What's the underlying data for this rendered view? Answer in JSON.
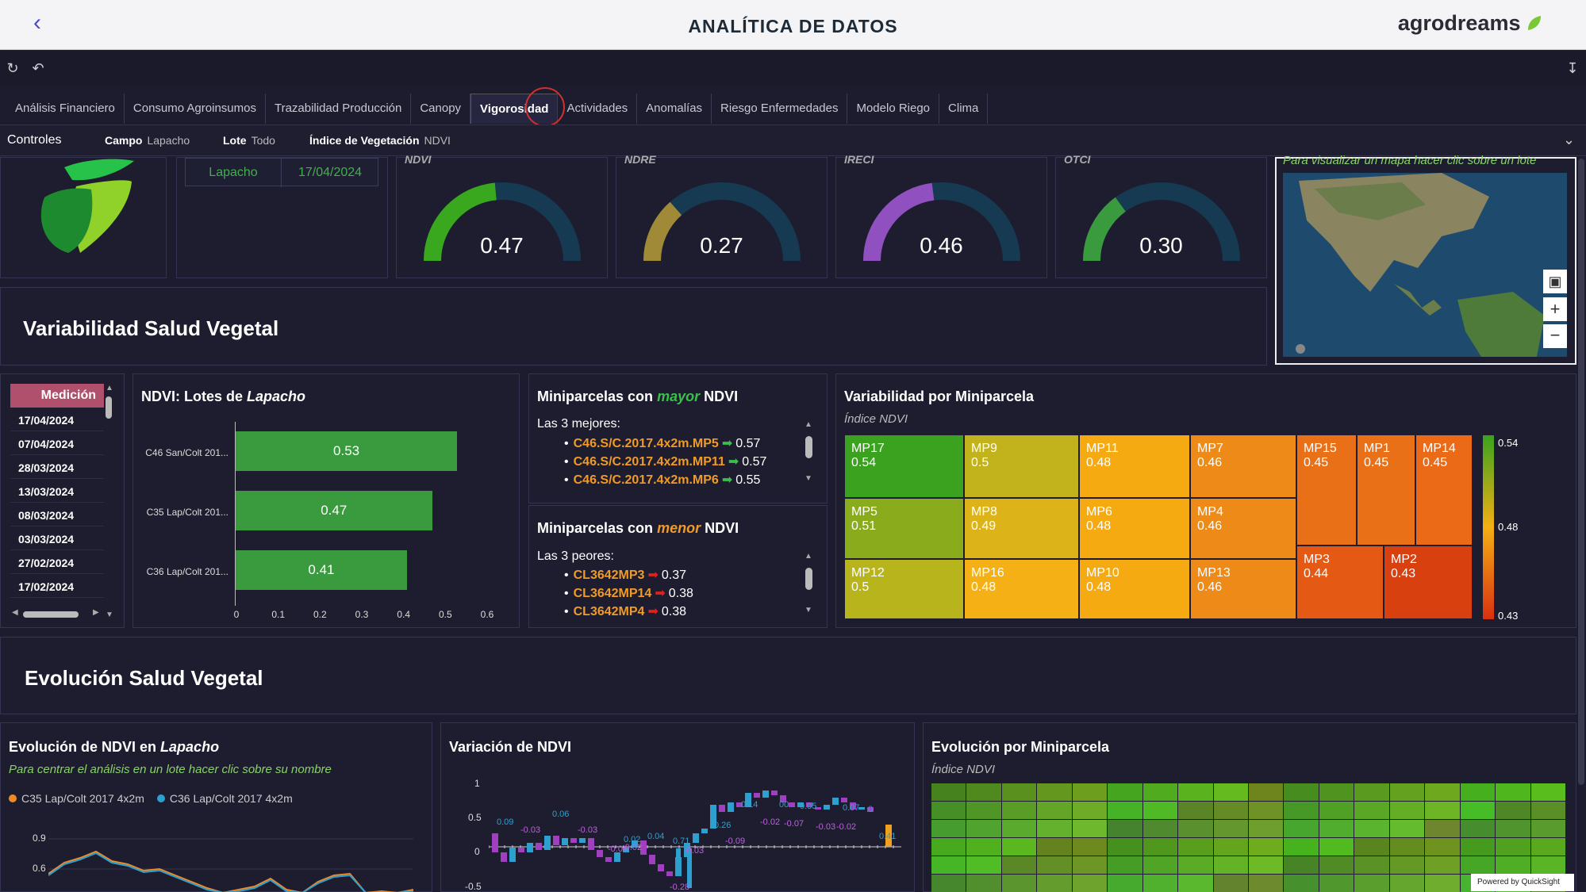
{
  "header": {
    "back_icon": "chevron-left-icon",
    "title": "ANALÍTICA DE DATOS",
    "brand": "agrodreams"
  },
  "tabs": [
    {
      "label": "Análisis Financiero"
    },
    {
      "label": "Consumo Agroinsumos"
    },
    {
      "label": "Trazabilidad Producción"
    },
    {
      "label": "Canopy"
    },
    {
      "label": "Vigorosidad",
      "active": true
    },
    {
      "label": "Actividades"
    },
    {
      "label": "Anomalías"
    },
    {
      "label": "Riesgo Enfermedades"
    },
    {
      "label": "Modelo Riego"
    },
    {
      "label": "Clima"
    }
  ],
  "controls": {
    "title": "Controles",
    "campo_label": "Campo",
    "campo_value": "Lapacho",
    "lote_label": "Lote",
    "lote_value": "Todo",
    "indice_label": "Índice de Vegetación",
    "indice_value": "NDVI"
  },
  "summary": {
    "campo": "Lapacho",
    "fecha": "17/04/2024"
  },
  "kpis": [
    {
      "label": "NDVI",
      "value": "0.47",
      "fraction": 0.47,
      "color": "#3aa81e"
    },
    {
      "label": "NDRE",
      "value": "0.27",
      "fraction": 0.27,
      "color": "#a08a38"
    },
    {
      "label": "IRECI",
      "value": "0.46",
      "fraction": 0.46,
      "color": "#9050c0"
    },
    {
      "label": "OTCI",
      "value": "0.30",
      "fraction": 0.3,
      "color": "#3a9a3e"
    }
  ],
  "map": {
    "hint": "Para visualizar un mapa hacer clic sobre un lote"
  },
  "section1": {
    "title": "Variabilidad Salud Vegetal"
  },
  "dates": {
    "header": "Medición",
    "items": [
      "17/04/2024",
      "07/04/2024",
      "28/03/2024",
      "13/03/2024",
      "08/03/2024",
      "03/03/2024",
      "27/02/2024",
      "17/02/2024"
    ]
  },
  "bar_chart": {
    "title_prefix": "NDVI: Lotes de",
    "title_campo": "Lapacho",
    "chart_data": {
      "type": "bar",
      "categories": [
        "C46 San/Colt 201...",
        "C35 Lap/Colt 201...",
        "C36 Lap/Colt 201..."
      ],
      "values": [
        0.53,
        0.47,
        0.41
      ],
      "value_labels": [
        "0.53",
        "0.47",
        "0.41"
      ],
      "xlim": [
        0,
        0.6
      ],
      "ticks": [
        "0",
        "0.1",
        "0.2",
        "0.3",
        "0.4",
        "0.5",
        "0.6"
      ]
    }
  },
  "best": {
    "title_prefix": "Miniparcelas con",
    "title_word": "mayor",
    "title_suffix": "NDVI",
    "caption": "Las 3 mejores:",
    "items": [
      {
        "name": "C46.S/C.2017.4x2m.MP5",
        "value": "0.57"
      },
      {
        "name": "C46.S/C.2017.4x2m.MP11",
        "value": "0.57"
      },
      {
        "name": "C46.S/C.2017.4x2m.MP6",
        "value": "0.55"
      }
    ]
  },
  "worst": {
    "title_prefix": "Miniparcelas con",
    "title_word": "menor",
    "title_suffix": "NDVI",
    "caption": "Las 3 peores:",
    "items": [
      {
        "name": "CL3642MP3",
        "value": "0.37"
      },
      {
        "name": "CL3642MP14",
        "value": "0.38"
      },
      {
        "name": "CL3642MP4",
        "value": "0.38"
      }
    ]
  },
  "treemap": {
    "title": "Variabilidad por Miniparcela",
    "subtitle": "Índice NDVI",
    "cells": [
      {
        "name": "MP17",
        "value": "0.54",
        "color": "#3aa21e"
      },
      {
        "name": "MP5",
        "value": "0.51",
        "color": "#8aac1c"
      },
      {
        "name": "MP12",
        "value": "0.5",
        "color": "#b8b41c"
      },
      {
        "name": "MP9",
        "value": "0.5",
        "color": "#c2b21c"
      },
      {
        "name": "MP8",
        "value": "0.49",
        "color": "#dcb41a"
      },
      {
        "name": "MP16",
        "value": "0.48",
        "color": "#f4b014"
      },
      {
        "name": "MP11",
        "value": "0.48",
        "color": "#f6aa12"
      },
      {
        "name": "MP6",
        "value": "0.48",
        "color": "#f6aa12"
      },
      {
        "name": "MP10",
        "value": "0.48",
        "color": "#f6aa12"
      },
      {
        "name": "MP7",
        "value": "0.46",
        "color": "#ee8a18"
      },
      {
        "name": "MP4",
        "value": "0.46",
        "color": "#ee8a18"
      },
      {
        "name": "MP13",
        "value": "0.46",
        "color": "#ee8a18"
      },
      {
        "name": "MP15",
        "value": "0.45",
        "color": "#ea7018"
      },
      {
        "name": "MP1",
        "value": "0.45",
        "color": "#ea7018"
      },
      {
        "name": "MP14",
        "value": "0.45",
        "color": "#ea6a18"
      },
      {
        "name": "MP3",
        "value": "0.44",
        "color": "#e45a14"
      },
      {
        "name": "MP2",
        "value": "0.43",
        "color": "#d84010"
      }
    ],
    "scale": [
      "0.54",
      "0.48",
      "0.43"
    ]
  },
  "section2": {
    "title": "Evolución Salud Vegetal"
  },
  "evolution": {
    "title_prefix": "Evolución de NDVI en",
    "title_campo": "Lapacho",
    "hint": "Para centrar el análisis en un lote hacer clic sobre su nombre",
    "legend": [
      {
        "name": "C35 Lap/Colt 2017 4x2m",
        "color": "#f08a28"
      },
      {
        "name": "C36 Lap/Colt 2017 4x2m",
        "color": "#2ea0d0"
      }
    ],
    "ticks": [
      "0.9",
      "0.6"
    ]
  },
  "variation": {
    "title": "Variación de NDVI",
    "ticks": [
      "1",
      "0.5",
      "0",
      "-0.5"
    ],
    "labels": [
      "0.09",
      "-0.03",
      "0.06",
      "-0.03",
      "0.02",
      "0.04",
      "-0.04",
      "-0.02",
      "0.71",
      "-0.03",
      "0.26",
      "-0.09",
      "0.14",
      "-0.02",
      "00",
      "0.05",
      "-0.07",
      "-0.03",
      "-0.02",
      "0.07",
      "0",
      "0.41",
      "-0.28"
    ]
  },
  "evo_mp": {
    "title": "Evolución por Miniparcela",
    "subtitle": "Índice NDVI"
  },
  "footer": {
    "powered": "Powered by QuickSight"
  }
}
